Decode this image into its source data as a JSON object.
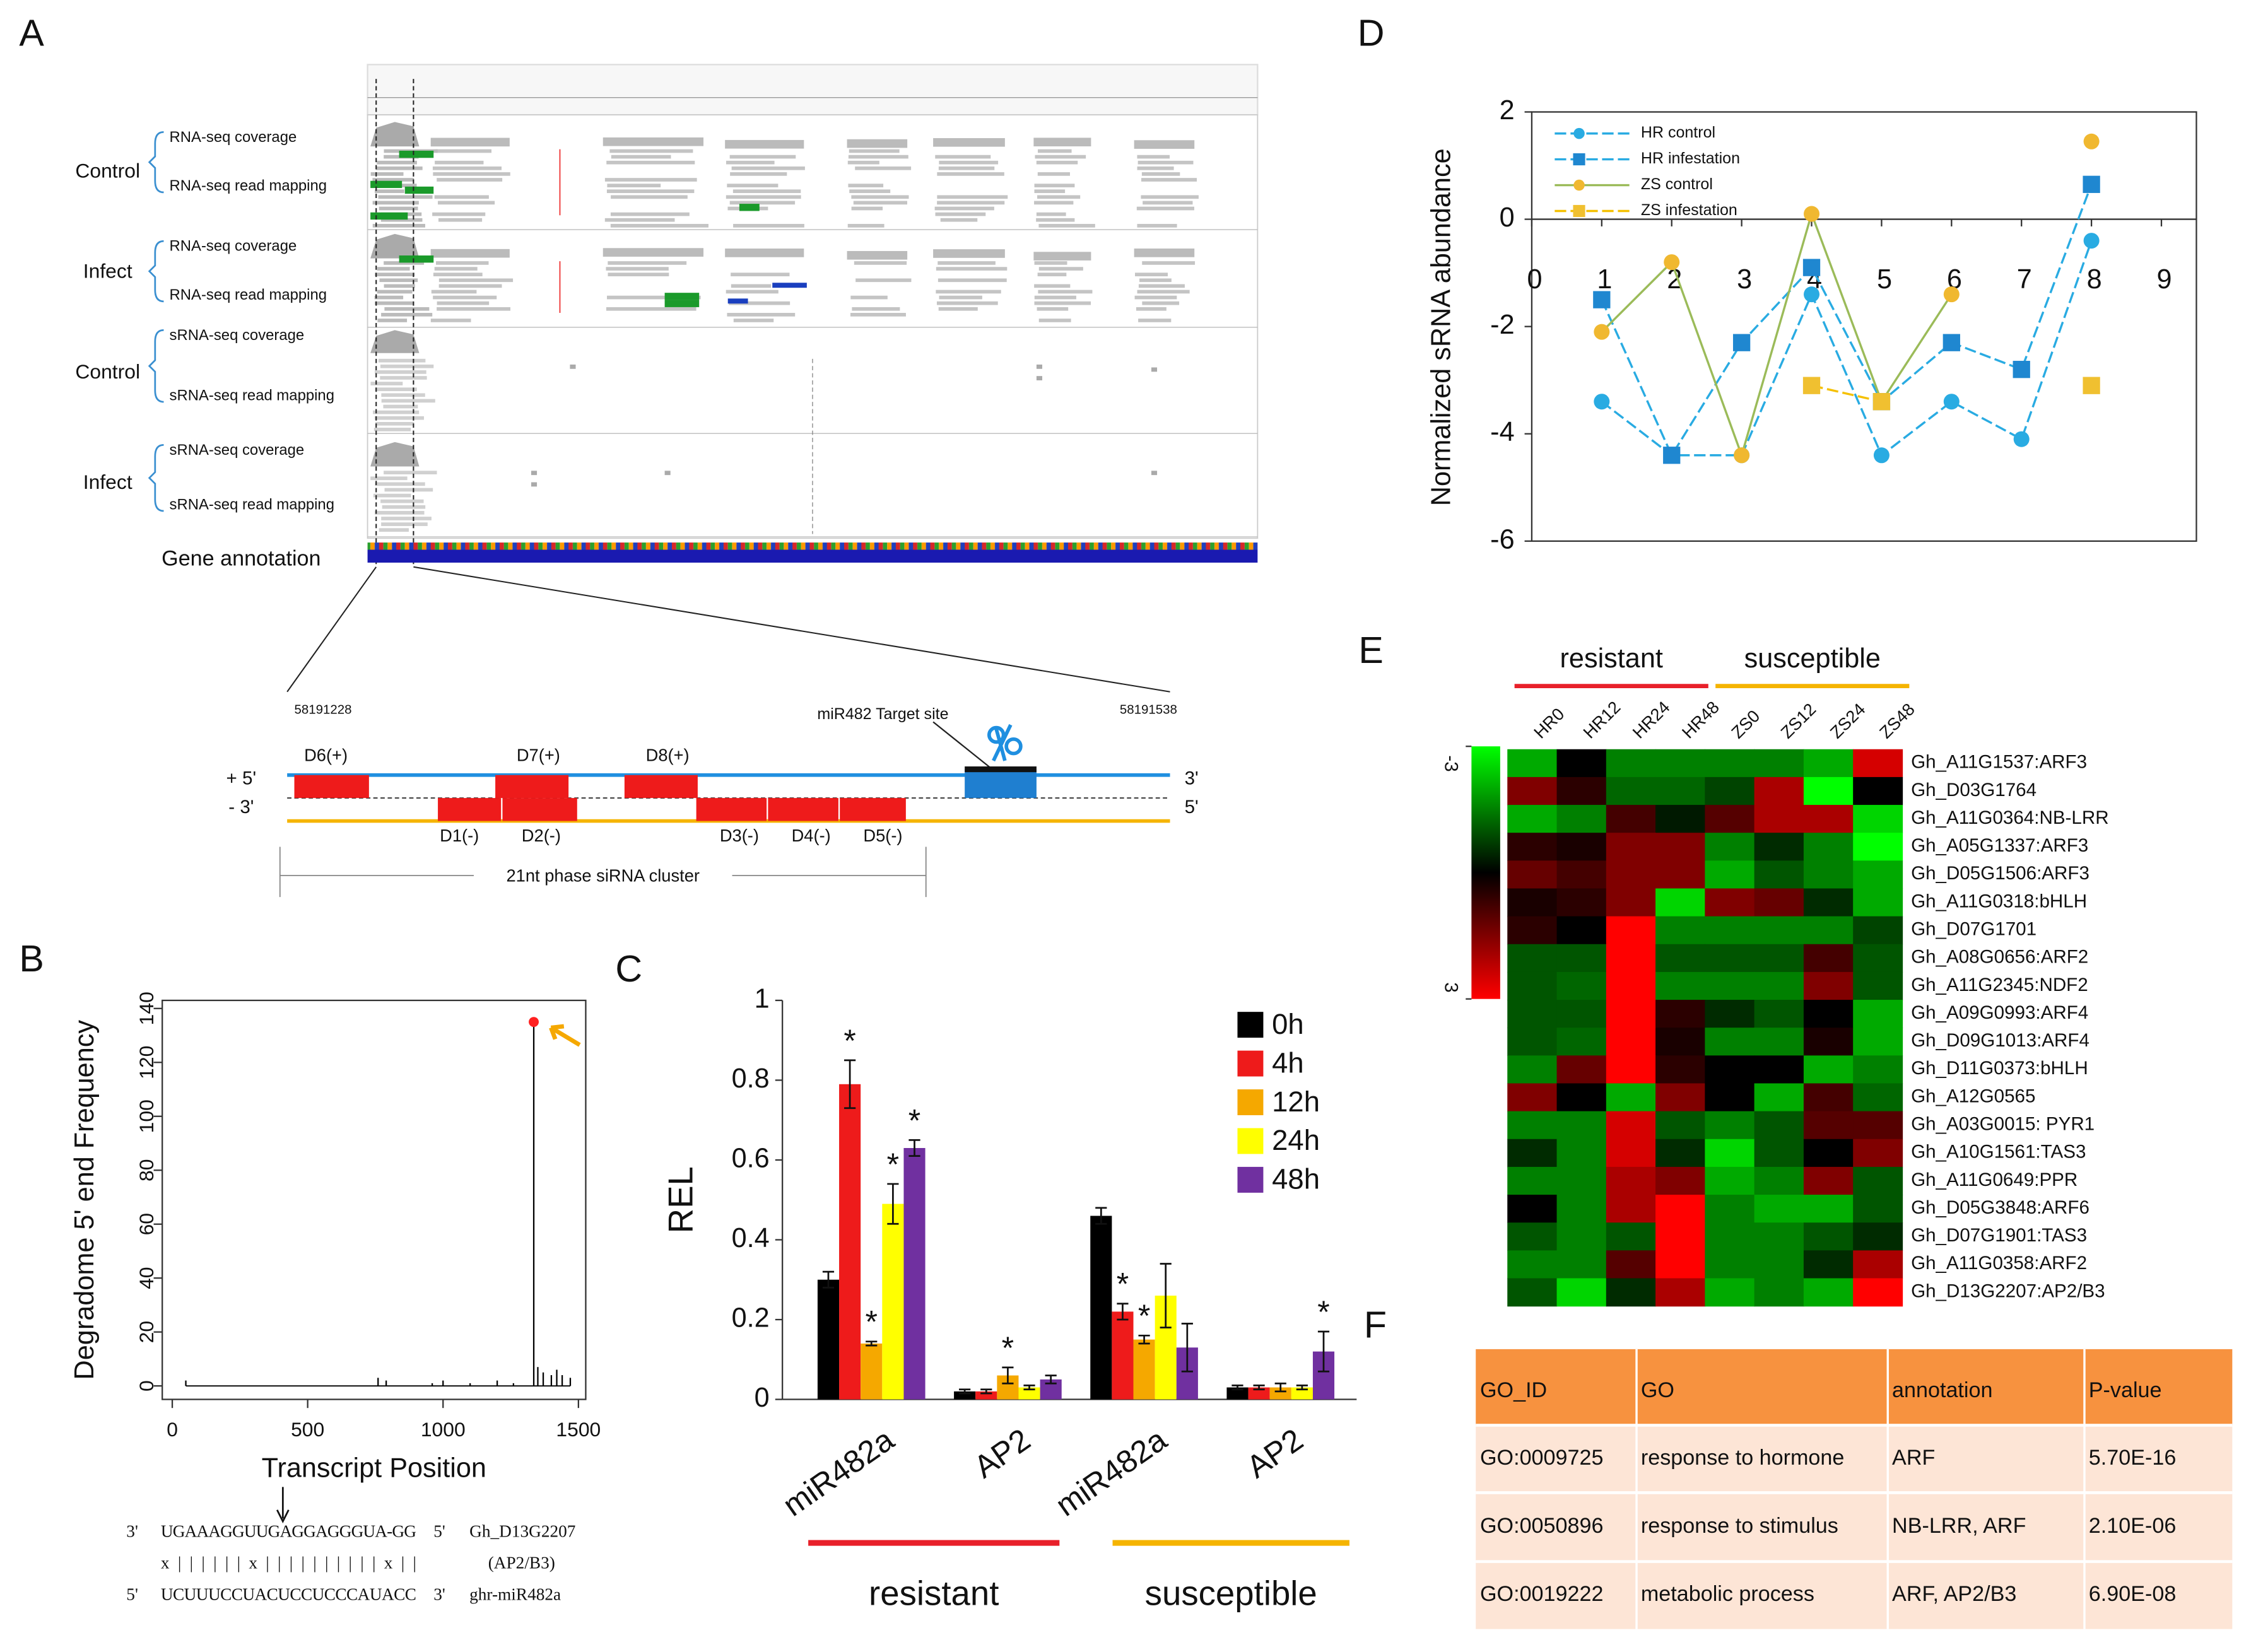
{
  "panel_labels": [
    "A",
    "B",
    "C",
    "D",
    "E",
    "F"
  ],
  "panel_a": {
    "groups": [
      {
        "name": "Control",
        "tracks": [
          "RNA-seq coverage",
          "RNA-seq read mapping"
        ]
      },
      {
        "name": "Infect",
        "tracks": [
          "RNA-seq coverage",
          "RNA-seq read mapping"
        ]
      },
      {
        "name": "Control",
        "tracks": [
          "sRNA-seq coverage",
          "sRNA-seq read mapping"
        ]
      },
      {
        "name": "Infect",
        "tracks": [
          "sRNA-seq coverage",
          "sRNA-seq read mapping"
        ]
      }
    ],
    "annotation_label": "Gene annotation",
    "start": 58191228,
    "end": 58191538,
    "target_label": "miR482 Target site",
    "sirnas": [
      "D6(+)",
      "D7(+)",
      "D8(+)",
      "D1(-)",
      "D2(-)",
      "D3(-)",
      "D4(-)",
      "D5(-)"
    ],
    "strand_labels": [
      "+ 5'",
      "- 3'",
      "3'",
      "5'"
    ],
    "cluster_label": "21nt phase siRNA cluster"
  },
  "chart_data": [
    {
      "type": "spike",
      "xlabel": "Transcript Position",
      "ylabel": "Degradome 5' end Frequency",
      "x": [
        50,
        760,
        790,
        960,
        1000,
        1100,
        1200,
        1260,
        1335,
        1350,
        1370,
        1400,
        1420,
        1440,
        1470
      ],
      "values": [
        2,
        3,
        2,
        1,
        2,
        1,
        2,
        1,
        135,
        7,
        5,
        4,
        6,
        4,
        3
      ],
      "color": "#000000",
      "highlight_color": "#ff2020",
      "xlim": [
        -37,
        1527
      ],
      "ylim": [
        -5,
        143
      ],
      "xticks": [
        0,
        500,
        1000,
        1500
      ],
      "yticks": [
        0,
        20,
        40,
        60,
        80,
        100,
        120,
        140
      ],
      "alignment": [
        {
          "left": "3'",
          "seq": "UGAAAGGUUGAGGAGGGUA-GG",
          "right": "5'",
          "name": "Gh_D13G2207"
        },
        {
          "seq": "x||||||x||||||||||x||",
          "name": "(AP2/B3)"
        },
        {
          "left": "5'",
          "seq": "UCUUUCCUACUCCUCCCAUACC",
          "right": "3'",
          "name": "ghr-miR482a"
        }
      ]
    },
    {
      "type": "bar",
      "ylabel": "REL",
      "categories": [
        "miR482a",
        "AP2",
        "miR482a",
        "AP2"
      ],
      "series": [
        {
          "name": "0h",
          "color": "#000000",
          "values": [
            0.3,
            0.02,
            0.46,
            0.03
          ],
          "errors": [
            0.02,
            0.005,
            0.02,
            0.005
          ],
          "labels": [
            null,
            null,
            null,
            null
          ]
        },
        {
          "name": "4h",
          "color": "#ee1b1b",
          "values": [
            0.79,
            0.02,
            0.22,
            0.03
          ],
          "errors": [
            0.06,
            0.005,
            0.02,
            0.005
          ],
          "labels": [
            "*",
            null,
            "*",
            null
          ]
        },
        {
          "name": "12h",
          "color": "#f5a800",
          "values": [
            0.14,
            0.06,
            0.15,
            0.03
          ],
          "errors": [
            0.005,
            0.02,
            0.01,
            0.01
          ],
          "labels": [
            "*",
            "*",
            "*",
            null
          ]
        },
        {
          "name": "24h",
          "color": "#ffff00",
          "values": [
            0.49,
            0.03,
            0.26,
            0.03
          ],
          "errors": [
            0.05,
            0.005,
            0.08,
            0.005
          ],
          "labels": [
            "*",
            null,
            null,
            null
          ]
        },
        {
          "name": "48h",
          "color": "#7030a0",
          "values": [
            0.63,
            0.05,
            0.13,
            0.12
          ],
          "errors": [
            0.02,
            0.01,
            0.06,
            0.05
          ],
          "labels": [
            "*",
            null,
            null,
            "*"
          ]
        }
      ],
      "groups": [
        {
          "name": "resistant",
          "color": "#e8202a"
        },
        {
          "name": "susceptible",
          "color": "#f5b400"
        }
      ],
      "ylim": [
        0,
        1
      ],
      "yticks": [
        0,
        0.2,
        0.4,
        0.6,
        0.8,
        1
      ]
    },
    {
      "type": "line",
      "ylabel": "Normalized sRNA abundance",
      "x": [
        1,
        2,
        3,
        4,
        5,
        6,
        7,
        8
      ],
      "series": [
        {
          "name": "HR control",
          "color": "#29abe2",
          "line_color": "#29abe2",
          "marker": "circle",
          "dash": true,
          "values": [
            -3.4,
            -4.4,
            -4.4,
            -1.4,
            -4.4,
            -3.4,
            -4.1,
            -0.4
          ]
        },
        {
          "name": "HR infestation",
          "color": "#1f87d0",
          "line_color": "#29abe2",
          "marker": "square",
          "dash": true,
          "values": [
            -1.5,
            -4.4,
            -2.3,
            -0.9,
            -3.4,
            -2.3,
            -2.8,
            0.65
          ]
        },
        {
          "name": "ZS control",
          "color": "#f0b830",
          "line_color": "#9bbb59",
          "marker": "circle",
          "dash": false,
          "values": [
            -2.1,
            -0.8,
            -4.4,
            0.1,
            -3.4,
            -1.4,
            null,
            1.45
          ]
        },
        {
          "name": "ZS infestation",
          "color": "#f0c030",
          "line_color": "#f5c000",
          "marker": "square",
          "dash": true,
          "values": [
            null,
            null,
            null,
            -3.1,
            -3.4,
            null,
            null,
            -3.1
          ]
        }
      ],
      "xlim": [
        0,
        9.5
      ],
      "ylim": [
        -6,
        2
      ],
      "xticks": [
        0,
        1,
        2,
        3,
        4,
        5,
        6,
        7,
        8,
        9
      ],
      "yticks": [
        -6,
        -4,
        -2,
        0,
        2
      ]
    },
    {
      "type": "heatmap",
      "groups": [
        {
          "name": "resistant",
          "color": "#e8202a"
        },
        {
          "name": "susceptible",
          "color": "#f5b400"
        }
      ],
      "x_labels": [
        "HR0",
        "HR12",
        "HR24",
        "HR48",
        "ZS0",
        "ZS12",
        "ZS24",
        "ZS48"
      ],
      "y_labels": [
        "Gh_A11G1537:ARF3",
        "Gh_D03G1764",
        "Gh_A11G0364:NB-LRR",
        "Gh_A05G1337:ARF3",
        "Gh_D05G1506:ARF3",
        "Gh_A11G0318:bHLH",
        "Gh_D07G1701",
        "Gh_A08G0656:ARF2",
        "Gh_A11G2345:NDF2",
        "Gh_A09G0993:ARF4",
        "Gh_D09G1013:ARF4",
        "Gh_D11G0373:bHLH",
        "Gh_A12G0565",
        "Gh_A03G0015: PYR1",
        "Gh_A10G1561:TAS3",
        "Gh_A11G0649:PPR",
        "Gh_D05G3848:ARF6",
        "Gh_D07G1901:TAS3",
        "Gh_A11G0358:ARF2",
        "Gh_D13G2207:AP2/B3"
      ],
      "values": [
        [
          -2,
          0,
          -1.5,
          -1.5,
          -1.5,
          -1.5,
          -2,
          2.5
        ],
        [
          1.5,
          0.5,
          -1.2,
          -1.2,
          -0.8,
          2,
          -3,
          0
        ],
        [
          -2,
          -1.5,
          0.8,
          -0.3,
          1,
          2,
          2,
          -2.5
        ],
        [
          0.5,
          0.3,
          1.5,
          1.5,
          -1.5,
          -0.5,
          -1.5,
          -3
        ],
        [
          1.2,
          0.8,
          1.5,
          1.5,
          -2,
          -1,
          -1.5,
          -2
        ],
        [
          0.3,
          0.5,
          1.5,
          -2.5,
          1.5,
          1.2,
          -0.5,
          -2
        ],
        [
          0.5,
          0,
          3,
          -1.5,
          -1.5,
          -1.5,
          -1.5,
          -0.8
        ],
        [
          -1,
          -1,
          3,
          -1,
          -1,
          -1,
          0.8,
          -1
        ],
        [
          -1,
          -1.2,
          3,
          -1.5,
          -1.5,
          -1.5,
          1.5,
          -1
        ],
        [
          -1,
          -1,
          3,
          0.5,
          -0.5,
          -1,
          0,
          -2
        ],
        [
          -1,
          -1.2,
          3,
          0.3,
          -1.5,
          -1.5,
          0.3,
          -2
        ],
        [
          -1.5,
          1.2,
          3,
          0.5,
          0,
          0,
          -2,
          -1.5
        ],
        [
          1.5,
          0,
          -2,
          1.5,
          0,
          -2,
          0.8,
          -1.2
        ],
        [
          -1.5,
          -1.5,
          2.5,
          -1,
          -1.5,
          -1,
          1,
          1
        ],
        [
          -0.5,
          -1.5,
          2.5,
          -0.5,
          -2.5,
          -1,
          0,
          1.5
        ],
        [
          -1.5,
          -1.5,
          2,
          1.5,
          -2,
          -1.5,
          1.5,
          -1
        ],
        [
          0,
          -1.5,
          2,
          3,
          -1.5,
          -2,
          -2,
          -1
        ],
        [
          -1,
          -1.5,
          -1,
          3,
          -1.5,
          -1.5,
          -1,
          -0.5
        ],
        [
          -1.5,
          -1.5,
          1,
          3,
          -1.5,
          -1.5,
          -0.5,
          2
        ],
        [
          -1,
          -2.5,
          -0.5,
          2,
          -2,
          -1.5,
          -2,
          3
        ]
      ],
      "zlim": [
        -3,
        3
      ],
      "colorbar_ticks": [
        -3,
        3
      ]
    }
  ],
  "panel_f": {
    "header": [
      "GO_ID",
      "GO",
      "annotation",
      "P-value"
    ],
    "rows": [
      [
        "GO:0009725",
        "response to hormone",
        "ARF",
        "5.70E-16"
      ],
      [
        "GO:0050896",
        "response to stimulus",
        "NB-LRR, ARF",
        "2.10E-06"
      ],
      [
        "GO:0019222",
        "metabolic process",
        "ARF, AP2/B3",
        "6.90E-08"
      ]
    ]
  }
}
